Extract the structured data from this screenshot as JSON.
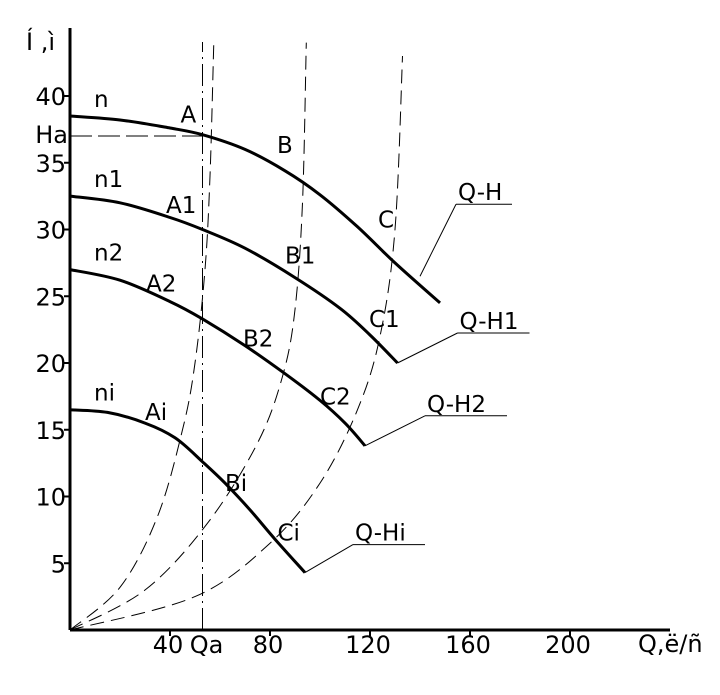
{
  "chart_data": {
    "type": "line",
    "title": "",
    "xlabel": "Q,ё/ñ",
    "ylabel": "Í ,ì",
    "xlim": [
      0,
      240
    ],
    "ylim": [
      0,
      45
    ],
    "x_ticks": [
      {
        "value": 40,
        "label": "40"
      },
      {
        "value": 80,
        "label": "80"
      },
      {
        "value": 120,
        "label": "120"
      },
      {
        "value": 160,
        "label": "160"
      },
      {
        "value": 200,
        "label": "200"
      }
    ],
    "y_ticks": [
      {
        "value": 5,
        "label": "5"
      },
      {
        "value": 10,
        "label": "10"
      },
      {
        "value": 15,
        "label": "15"
      },
      {
        "value": 20,
        "label": "20"
      },
      {
        "value": 25,
        "label": "25"
      },
      {
        "value": 30,
        "label": "30"
      },
      {
        "value": 35,
        "label": "35"
      },
      {
        "value": 40,
        "label": "40"
      }
    ],
    "reference": {
      "x_label": "Qa",
      "x_value": 53,
      "y_label": "Ha",
      "y_value": 37
    },
    "series": [
      {
        "style": "solid",
        "speed_label": "n",
        "curve_label": "Q-H",
        "points": [
          [
            0,
            38.5
          ],
          [
            20,
            38.2
          ],
          [
            40,
            37.6
          ],
          [
            53,
            37.1
          ],
          [
            70,
            36
          ],
          [
            86,
            34.4
          ],
          [
            100,
            32.6
          ],
          [
            115,
            30.2
          ],
          [
            130,
            27.5
          ],
          [
            148,
            24.5
          ]
        ],
        "markers": [
          {
            "label": "A",
            "at": [
              53,
              37.1
            ]
          },
          {
            "label": "B",
            "at": [
              86,
              34.4
            ]
          },
          {
            "label": "C",
            "at": [
              124,
              28.8
            ]
          }
        ],
        "curve_label_attach": [
          140,
          26.5
        ]
      },
      {
        "style": "solid",
        "speed_label": "n1",
        "curve_label": "Q-H1",
        "points": [
          [
            0,
            32.5
          ],
          [
            20,
            32
          ],
          [
            40,
            30.9
          ],
          [
            53,
            30
          ],
          [
            70,
            28.6
          ],
          [
            90,
            26.4
          ],
          [
            108,
            24.1
          ],
          [
            120,
            22.1
          ],
          [
            131,
            20
          ]
        ],
        "markers": [
          {
            "label": "A1",
            "at": [
              48,
              30.5
            ]
          },
          {
            "label": "B1",
            "at": [
              90,
              26.4
            ]
          },
          {
            "label": "C1",
            "at": [
              122,
              21.8
            ]
          }
        ],
        "curve_label_attach": [
          131,
          20
        ]
      },
      {
        "style": "solid",
        "speed_label": "n2",
        "curve_label": "Q-H2",
        "points": [
          [
            0,
            27
          ],
          [
            20,
            26.2
          ],
          [
            40,
            24.6
          ],
          [
            53,
            23.3
          ],
          [
            70,
            21.3
          ],
          [
            86,
            19.2
          ],
          [
            100,
            17.2
          ],
          [
            110,
            15.5
          ],
          [
            118,
            13.8
          ]
        ],
        "markers": [
          {
            "label": "A2",
            "at": [
              40,
              24.6
            ]
          },
          {
            "label": "B2",
            "at": [
              78,
              20.2
            ]
          },
          {
            "label": "C2",
            "at": [
              108,
              16
            ]
          }
        ],
        "curve_label_attach": [
          118,
          13.8
        ]
      },
      {
        "style": "solid",
        "speed_label": "ni",
        "curve_label": "Q-Hi",
        "points": [
          [
            0,
            16.5
          ],
          [
            15,
            16.3
          ],
          [
            30,
            15.5
          ],
          [
            42,
            14.4
          ],
          [
            53,
            12.6
          ],
          [
            62,
            11
          ],
          [
            72,
            9
          ],
          [
            82,
            6.8
          ],
          [
            94,
            4.3
          ]
        ],
        "markers": [
          {
            "label": "Ai",
            "at": [
              38,
              15
            ]
          },
          {
            "label": "Bi",
            "at": [
              70,
              9.5
            ]
          },
          {
            "label": "Ci",
            "at": [
              87,
              5.8
            ]
          }
        ],
        "curve_label_attach": [
          94,
          4.3
        ]
      }
    ],
    "parabolas": [
      {
        "style": "dashed",
        "through": "A",
        "points": [
          [
            0,
            0
          ],
          [
            20,
            3.2
          ],
          [
            35,
            8.5
          ],
          [
            45,
            15
          ],
          [
            50,
            20
          ],
          [
            54,
            27
          ],
          [
            56,
            34
          ],
          [
            57.5,
            44
          ]
        ]
      },
      {
        "style": "dashed",
        "through": "B",
        "points": [
          [
            0,
            0
          ],
          [
            30,
            3
          ],
          [
            55,
            8
          ],
          [
            75,
            14
          ],
          [
            85,
            19
          ],
          [
            90,
            24
          ],
          [
            93,
            32
          ],
          [
            94.5,
            44
          ]
        ]
      },
      {
        "style": "dashed",
        "through": "C",
        "points": [
          [
            0,
            0
          ],
          [
            50,
            2.5
          ],
          [
            80,
            6.5
          ],
          [
            100,
            11
          ],
          [
            115,
            16.5
          ],
          [
            124,
            22
          ],
          [
            130,
            30
          ],
          [
            133,
            43
          ]
        ]
      }
    ]
  }
}
